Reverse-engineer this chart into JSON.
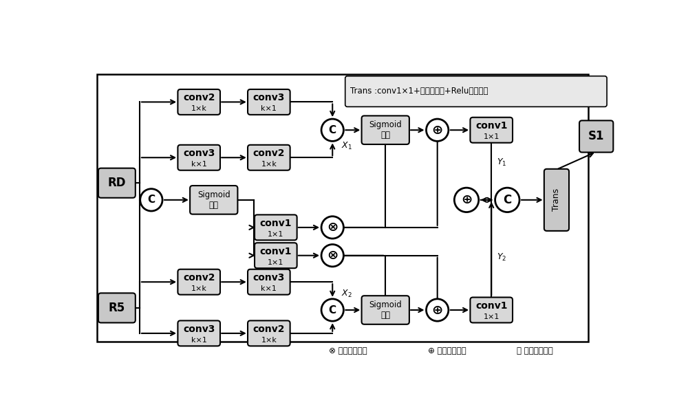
{
  "bg_color": "#ffffff",
  "note_text": "Trans :conv1×1+批量归一化+Relu激活函数",
  "legend_otimes": "⊗ 元素相乘操作",
  "legend_oplus": "⊕ 元素相加操纵",
  "legend_circ": "Ⓢ 元素串联操作"
}
